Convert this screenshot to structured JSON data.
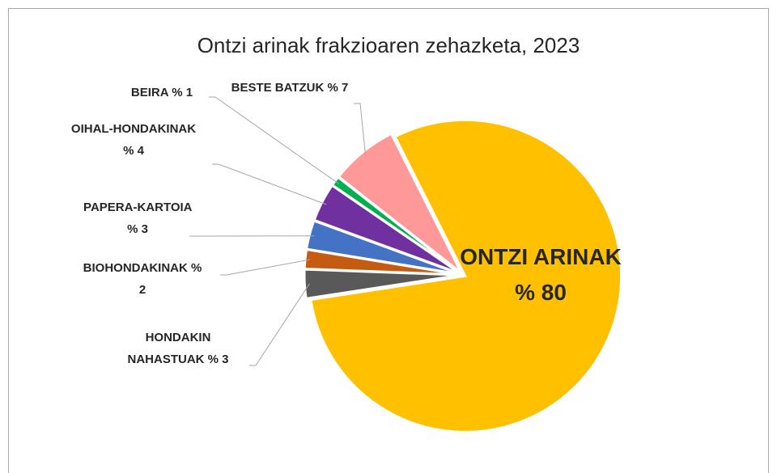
{
  "chart_data": {
    "type": "pie",
    "title": "Ontzi arinak frakzioaren zehazketa, 2023",
    "categories": [
      "ONTZI ARINAK",
      "HONDAKIN NAHASTUAK",
      "BIOHONDAKINAK",
      "PAPERA-KARTOIA",
      "OIHAL-HONDAKINAK",
      "BEIRA",
      "BESTE BATZUK"
    ],
    "values": [
      80,
      3,
      2,
      3,
      4,
      1,
      7
    ],
    "value_labels": [
      "% 80",
      "% 3",
      "% 2",
      "% 3",
      "% 4",
      "% 1",
      "% 7"
    ],
    "colors": [
      "#FFC000",
      "#595959",
      "#C55A11",
      "#4472C4",
      "#7030A0",
      "#00B050",
      "#FF9999"
    ]
  }
}
